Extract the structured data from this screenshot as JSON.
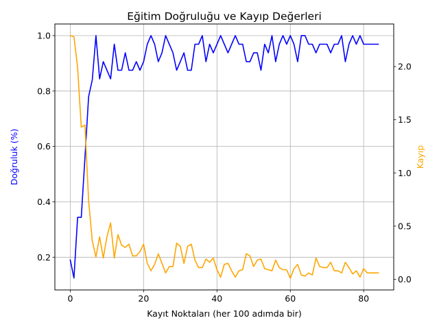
{
  "chart_data": {
    "type": "line",
    "title": "Eğitim Doğruluğu ve Kayıp Değerleri",
    "xlabel": "Kayıt Noktaları (her 100 adımda bir)",
    "ylabel_left": "Doğruluk (%)",
    "ylabel_right": "Kayıp",
    "xlim": [
      -4.2,
      88.2
    ],
    "ylim_left": [
      0.082,
      1.042
    ],
    "ylim_right": [
      -0.1,
      2.4
    ],
    "x_ticks": [
      0,
      20,
      40,
      60,
      80
    ],
    "y_ticks_left": [
      0.2,
      0.4,
      0.6,
      0.8,
      1.0
    ],
    "y_ticks_right": [
      0.0,
      0.5,
      1.0,
      1.5,
      2.0
    ],
    "grid": true,
    "colors": {
      "accuracy": "#0000ff",
      "loss": "#ffa500"
    },
    "x": [
      0,
      1,
      2,
      3,
      4,
      5,
      6,
      7,
      8,
      9,
      10,
      11,
      12,
      13,
      14,
      15,
      16,
      17,
      18,
      19,
      20,
      21,
      22,
      23,
      24,
      25,
      26,
      27,
      28,
      29,
      30,
      31,
      32,
      33,
      34,
      35,
      36,
      37,
      38,
      39,
      40,
      41,
      42,
      43,
      44,
      45,
      46,
      47,
      48,
      49,
      50,
      51,
      52,
      53,
      54,
      55,
      56,
      57,
      58,
      59,
      60,
      61,
      62,
      63,
      64,
      65,
      66,
      67,
      68,
      69,
      70,
      71,
      72,
      73,
      74,
      75,
      76,
      77,
      78,
      79,
      80,
      81,
      82,
      83,
      84
    ],
    "series": [
      {
        "key": "accuracy",
        "axis": "left",
        "values": [
          0.19,
          0.125,
          0.344,
          0.344,
          0.56,
          0.78,
          0.84,
          1.0,
          0.844,
          0.906,
          0.875,
          0.844,
          0.969,
          0.875,
          0.875,
          0.938,
          0.875,
          0.875,
          0.906,
          0.875,
          0.906,
          0.969,
          1.0,
          0.969,
          0.906,
          0.938,
          1.0,
          0.969,
          0.938,
          0.875,
          0.906,
          0.938,
          0.875,
          0.875,
          0.969,
          0.969,
          1.0,
          0.906,
          0.969,
          0.938,
          0.969,
          1.0,
          0.969,
          0.938,
          0.969,
          1.0,
          0.969,
          0.969,
          0.906,
          0.906,
          0.938,
          0.938,
          0.875,
          0.969,
          0.938,
          1.0,
          0.906,
          0.969,
          1.0,
          0.969,
          1.0,
          0.969,
          0.906,
          1.0,
          1.0,
          0.969,
          0.969,
          0.938,
          0.969,
          0.969,
          0.969,
          0.938,
          0.969,
          0.969,
          1.0,
          0.906,
          0.969,
          1.0,
          0.969,
          1.0,
          0.969,
          0.969,
          0.969,
          0.969,
          0.969
        ]
      },
      {
        "key": "loss",
        "axis": "right",
        "values": [
          2.29,
          2.28,
          1.99,
          1.43,
          1.45,
          0.74,
          0.36,
          0.21,
          0.4,
          0.2,
          0.4,
          0.53,
          0.2,
          0.42,
          0.32,
          0.3,
          0.33,
          0.22,
          0.22,
          0.26,
          0.33,
          0.15,
          0.08,
          0.14,
          0.24,
          0.15,
          0.06,
          0.12,
          0.12,
          0.34,
          0.31,
          0.15,
          0.31,
          0.33,
          0.18,
          0.11,
          0.11,
          0.19,
          0.16,
          0.2,
          0.09,
          0.02,
          0.14,
          0.15,
          0.08,
          0.02,
          0.08,
          0.09,
          0.24,
          0.22,
          0.12,
          0.18,
          0.19,
          0.1,
          0.09,
          0.08,
          0.18,
          0.11,
          0.09,
          0.09,
          0.01,
          0.1,
          0.14,
          0.04,
          0.03,
          0.06,
          0.04,
          0.2,
          0.12,
          0.11,
          0.11,
          0.16,
          0.08,
          0.08,
          0.06,
          0.16,
          0.11,
          0.05,
          0.08,
          0.02,
          0.1,
          0.06,
          0.06,
          0.06,
          0.06
        ]
      }
    ]
  }
}
